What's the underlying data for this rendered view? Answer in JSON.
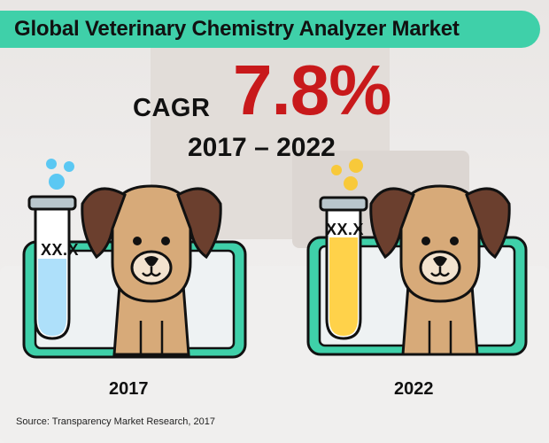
{
  "header": {
    "title": "Global Veterinary Chemistry Analyzer Market"
  },
  "cagr": {
    "label": "CAGR",
    "value": "7.8%",
    "period": "2017 – 2022"
  },
  "panels": [
    {
      "year": "2017",
      "tube_label": "XX.X",
      "liquid_color": "#aee0fa",
      "bubble_color": "#5bc8f3"
    },
    {
      "year": "2022",
      "tube_label": "XX.X",
      "liquid_color": "#ffd24a",
      "bubble_color": "#f8c93a"
    }
  ],
  "source": "Source: Transparency Market Research, 2017",
  "colors": {
    "title_bar": "#3fd0a9",
    "cagr_value": "#c8191b",
    "monitor_frame": "#3fd0a9",
    "dog_fur": "#d7aa79",
    "dog_ears": "#6b3f2e"
  }
}
